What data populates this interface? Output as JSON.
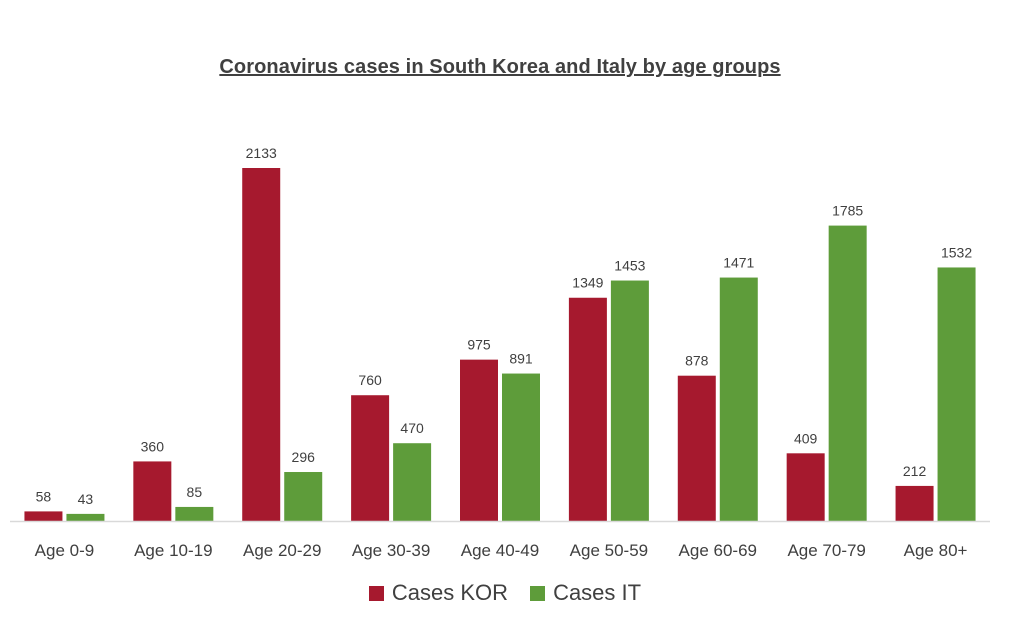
{
  "chart_data": {
    "type": "bar",
    "title": "Coronavirus cases in South Korea and Italy by age groups",
    "categories": [
      "Age 0-9",
      "Age 10-19",
      "Age 20-29",
      "Age 30-39",
      "Age 40-49",
      "Age 50-59",
      "Age 60-69",
      "Age 70-79",
      "Age 80+"
    ],
    "series": [
      {
        "name": "Cases KOR",
        "color": "#A6192E",
        "values": [
          58,
          360,
          2133,
          760,
          975,
          1349,
          878,
          409,
          212
        ]
      },
      {
        "name": "Cases IT",
        "color": "#5E9C3A",
        "values": [
          43,
          85,
          296,
          470,
          891,
          1453,
          1471,
          1785,
          1532
        ]
      }
    ],
    "ylim": [
      0,
      2133
    ],
    "grid": false,
    "legend": "bottom",
    "data_labels": true
  }
}
